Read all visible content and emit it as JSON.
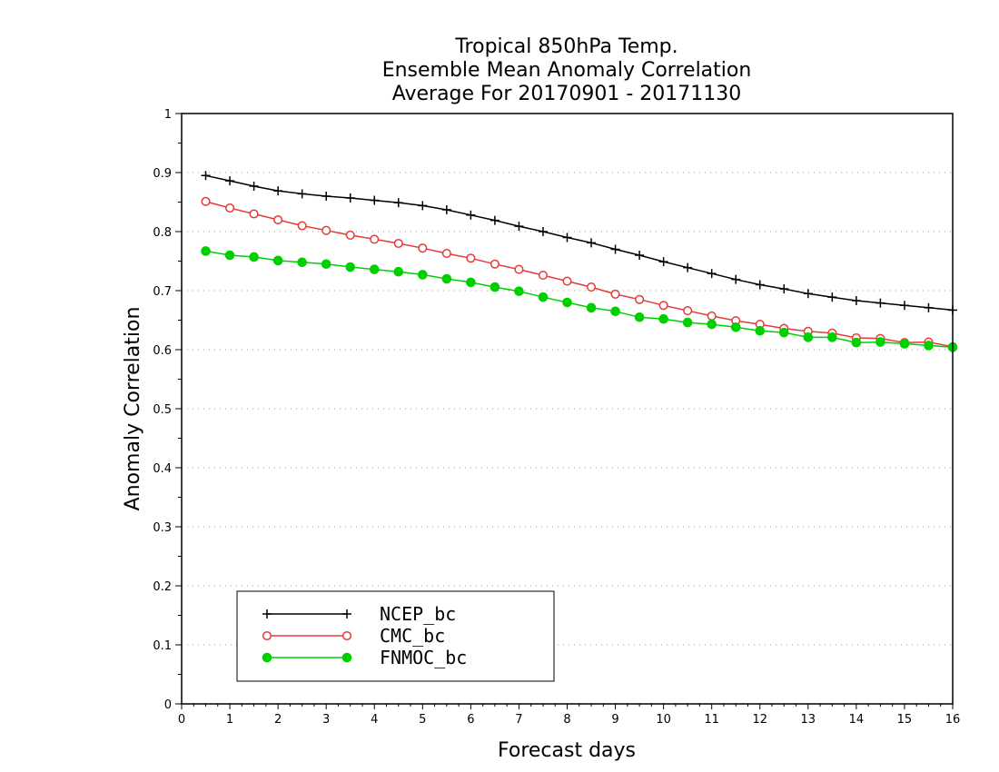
{
  "chart_data": {
    "type": "line",
    "title": [
      "Tropical 850hPa Temp.",
      "Ensemble Mean Anomaly Correlation",
      "Average For 20170901 - 20171130"
    ],
    "xlabel": "Forecast days",
    "ylabel": "Anomaly Correlation",
    "xlim": [
      0,
      16
    ],
    "ylim": [
      0,
      1
    ],
    "xticks": [
      "0",
      "1",
      "2",
      "3",
      "4",
      "5",
      "6",
      "7",
      "8",
      "9",
      "10",
      "11",
      "12",
      "13",
      "14",
      "15",
      "16"
    ],
    "yticks": [
      "0",
      "0.1",
      "0.2",
      "0.3",
      "0.4",
      "0.5",
      "0.6",
      "0.7",
      "0.8",
      "0.9",
      "1"
    ],
    "grid": "horizontal-dotted",
    "legend_position": "bottom-left",
    "x": [
      0.5,
      1,
      1.5,
      2,
      2.5,
      3,
      3.5,
      4,
      4.5,
      5,
      5.5,
      6,
      6.5,
      7,
      7.5,
      8,
      8.5,
      9,
      9.5,
      10,
      10.5,
      11,
      11.5,
      12,
      12.5,
      13,
      13.5,
      14,
      14.5,
      15,
      15.5,
      16
    ],
    "series": [
      {
        "name": "NCEP_bc",
        "color": "#000000",
        "marker": "plus",
        "values": [
          0.895,
          0.886,
          0.877,
          0.869,
          0.864,
          0.86,
          0.857,
          0.853,
          0.849,
          0.844,
          0.837,
          0.828,
          0.819,
          0.809,
          0.8,
          0.79,
          0.781,
          0.77,
          0.76,
          0.749,
          0.739,
          0.729,
          0.719,
          0.71,
          0.703,
          0.695,
          0.689,
          0.683,
          0.679,
          0.675,
          0.671,
          0.667
        ]
      },
      {
        "name": "CMC_bc",
        "color": "#e53a3a",
        "marker": "open-circle",
        "values": [
          0.851,
          0.84,
          0.83,
          0.82,
          0.81,
          0.802,
          0.794,
          0.787,
          0.78,
          0.772,
          0.763,
          0.755,
          0.745,
          0.736,
          0.726,
          0.716,
          0.706,
          0.694,
          0.685,
          0.675,
          0.666,
          0.657,
          0.649,
          0.643,
          0.636,
          0.631,
          0.628,
          0.62,
          0.619,
          0.612,
          0.613,
          0.605
        ]
      },
      {
        "name": "FNMOC_bc",
        "color": "#00d000",
        "marker": "filled-circle",
        "values": [
          0.767,
          0.76,
          0.757,
          0.751,
          0.748,
          0.745,
          0.74,
          0.736,
          0.732,
          0.727,
          0.72,
          0.714,
          0.706,
          0.699,
          0.689,
          0.68,
          0.671,
          0.665,
          0.655,
          0.652,
          0.646,
          0.643,
          0.638,
          0.632,
          0.629,
          0.621,
          0.621,
          0.612,
          0.613,
          0.61,
          0.607,
          0.604
        ]
      }
    ]
  }
}
